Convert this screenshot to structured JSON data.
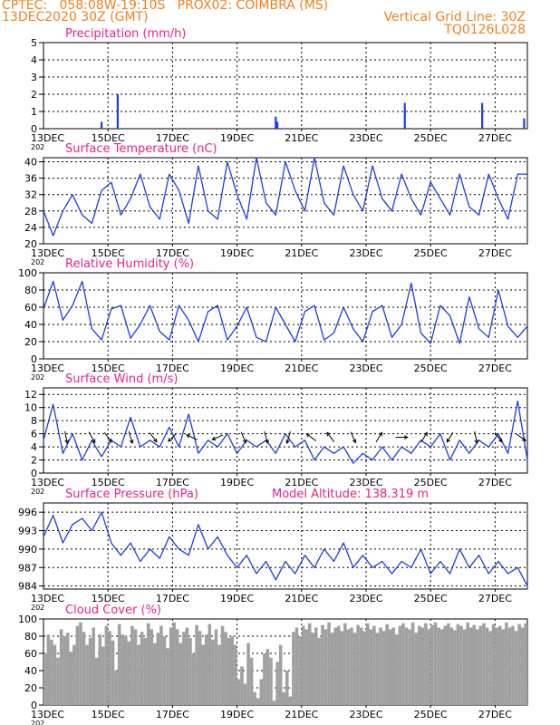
{
  "header": {
    "line1_left": "CPTEC:   058:08W-19:10S   PROX02: COIMBRA (MS)",
    "line2_left": "13DEC2020 30Z (GMT)",
    "line2_right": "Vertical Grid Line: 30Z",
    "line3_right": "TQ0126L028",
    "color": "#f08020"
  },
  "colors": {
    "series": "#1e3ce0",
    "title": "#e8208a",
    "arrow": "#000000",
    "cloud": "#a0a0a0",
    "grid": "#000000"
  },
  "x_axis": {
    "start_label": "13DEC",
    "start_year_partial": "202",
    "ticks": [
      {
        "day": 15,
        "label": "15DEC"
      },
      {
        "day": 17,
        "label": "17DEC"
      },
      {
        "day": 19,
        "label": "19DEC"
      },
      {
        "day": 21,
        "label": "21DEC"
      },
      {
        "day": 23,
        "label": "23DEC"
      },
      {
        "day": 25,
        "label": "25DEC"
      },
      {
        "day": 27,
        "label": "27DEC"
      }
    ],
    "range_days": [
      13.0,
      28.0
    ]
  },
  "chart_data": [
    {
      "type": "bar",
      "title": "Precipitation (mm/h)",
      "ylim": [
        0,
        5
      ],
      "yticks": [
        "0",
        "1",
        "2",
        "3",
        "4",
        "5"
      ],
      "x_days": [
        14.8,
        15.3,
        20.2,
        20.25,
        24.2,
        26.6,
        27.9
      ],
      "values": [
        0.4,
        2.0,
        0.7,
        0.4,
        1.5,
        1.5,
        0.6
      ]
    },
    {
      "type": "line",
      "title": "Surface Temperature (nC)",
      "ylim": [
        20,
        41
      ],
      "yticks": [
        "20",
        "24",
        "28",
        "32",
        "36",
        "40"
      ],
      "x_days": [
        13.0,
        13.3,
        13.6,
        13.9,
        14.2,
        14.5,
        14.8,
        15.1,
        15.4,
        15.7,
        16.0,
        16.3,
        16.6,
        16.9,
        17.2,
        17.5,
        17.8,
        18.1,
        18.4,
        18.7,
        19.0,
        19.3,
        19.6,
        19.9,
        20.2,
        20.5,
        20.8,
        21.1,
        21.4,
        21.7,
        22.0,
        22.3,
        22.6,
        22.9,
        23.2,
        23.5,
        23.8,
        24.1,
        24.4,
        24.7,
        25.0,
        25.3,
        25.6,
        25.9,
        26.2,
        26.5,
        26.8,
        27.1,
        27.4,
        27.7,
        28.0
      ],
      "values": [
        28,
        22,
        28,
        32,
        27,
        25,
        33,
        35,
        27,
        31,
        37,
        29,
        26,
        37,
        33,
        25,
        39,
        28,
        26,
        40,
        32,
        26,
        41,
        30,
        27,
        40,
        33,
        28,
        41,
        30,
        27,
        39,
        32,
        28,
        39,
        31,
        28,
        37,
        31,
        27,
        35,
        31,
        27,
        37,
        29,
        27,
        37,
        31,
        26,
        37,
        37
      ]
    },
    {
      "type": "line",
      "title": "Relative Humidity (%)",
      "ylim": [
        0,
        100
      ],
      "yticks": [
        "0",
        "20",
        "40",
        "60",
        "80",
        "100"
      ],
      "x_days": [
        13.0,
        13.3,
        13.6,
        13.9,
        14.2,
        14.5,
        14.8,
        15.1,
        15.4,
        15.7,
        16.0,
        16.3,
        16.6,
        16.9,
        17.2,
        17.5,
        17.8,
        18.1,
        18.4,
        18.7,
        19.0,
        19.3,
        19.6,
        19.9,
        20.2,
        20.5,
        20.8,
        21.1,
        21.4,
        21.7,
        22.0,
        22.3,
        22.6,
        22.9,
        23.2,
        23.5,
        23.8,
        24.1,
        24.4,
        24.7,
        25.0,
        25.3,
        25.6,
        25.9,
        26.2,
        26.5,
        26.8,
        27.1,
        27.4,
        27.7,
        28.0
      ],
      "values": [
        58,
        90,
        45,
        62,
        90,
        35,
        22,
        58,
        62,
        24,
        40,
        62,
        32,
        22,
        62,
        45,
        20,
        55,
        62,
        22,
        38,
        60,
        25,
        20,
        60,
        40,
        20,
        55,
        62,
        22,
        30,
        60,
        35,
        20,
        55,
        62,
        25,
        40,
        88,
        30,
        18,
        62,
        50,
        18,
        72,
        35,
        25,
        80,
        38,
        25,
        38
      ]
    },
    {
      "type": "line",
      "title": "Surface Wind (m/s)",
      "ylim": [
        0,
        13
      ],
      "yticks": [
        "0",
        "2",
        "4",
        "6",
        "8",
        "10",
        "12"
      ],
      "x_days": [
        13.0,
        13.3,
        13.6,
        13.9,
        14.2,
        14.5,
        14.8,
        15.1,
        15.4,
        15.7,
        16.0,
        16.3,
        16.6,
        16.9,
        17.2,
        17.5,
        17.8,
        18.1,
        18.4,
        18.7,
        19.0,
        19.3,
        19.6,
        19.9,
        20.2,
        20.5,
        20.8,
        21.1,
        21.4,
        21.7,
        22.0,
        22.3,
        22.6,
        22.9,
        23.2,
        23.5,
        23.8,
        24.1,
        24.4,
        24.7,
        25.0,
        25.3,
        25.6,
        25.9,
        26.2,
        26.5,
        26.8,
        27.1,
        27.4,
        27.7,
        28.0
      ],
      "values": [
        5,
        10.5,
        3,
        6,
        2,
        5,
        2.5,
        5,
        4,
        8.5,
        4,
        5,
        4,
        7,
        4,
        9,
        3,
        5,
        4,
        6,
        3,
        5,
        4,
        5,
        3,
        6,
        4,
        5,
        2,
        4,
        3,
        4,
        1.5,
        3,
        2,
        4,
        2,
        4,
        3,
        5,
        4,
        6,
        2,
        5,
        3,
        5,
        4,
        6,
        3,
        11,
        2
      ],
      "arrows": [
        {
          "day": 13.7,
          "dx": 0.2,
          "dy": 1
        },
        {
          "day": 14.5,
          "dx": 0.5,
          "dy": 0.9
        },
        {
          "day": 15.0,
          "dx": 0.6,
          "dy": 0.8
        },
        {
          "day": 15.7,
          "dx": 0.3,
          "dy": 1
        },
        {
          "day": 16.4,
          "dx": 0.6,
          "dy": 0.8
        },
        {
          "day": 17.0,
          "dx": -0.7,
          "dy": 0.7
        },
        {
          "day": 17.6,
          "dx": -0.9,
          "dy": -0.4
        },
        {
          "day": 18.4,
          "dx": -0.9,
          "dy": 0.4
        },
        {
          "day": 19.2,
          "dx": 0.4,
          "dy": 0.9
        },
        {
          "day": 19.9,
          "dx": 0.3,
          "dy": 1
        },
        {
          "day": 20.6,
          "dx": -0.3,
          "dy": 1
        },
        {
          "day": 21.3,
          "dx": -0.8,
          "dy": -0.6
        },
        {
          "day": 21.9,
          "dx": -0.6,
          "dy": -0.8
        },
        {
          "day": 22.6,
          "dx": 0.4,
          "dy": 0.9
        },
        {
          "day": 23.4,
          "dx": 0.5,
          "dy": -0.8
        },
        {
          "day": 24.1,
          "dx": 1,
          "dy": 0
        },
        {
          "day": 24.8,
          "dx": 0.5,
          "dy": -0.8
        },
        {
          "day": 25.6,
          "dx": -0.5,
          "dy": 0.8
        },
        {
          "day": 26.4,
          "dx": 0.2,
          "dy": 1
        },
        {
          "day": 27.1,
          "dx": 0.6,
          "dy": 0.8
        },
        {
          "day": 27.8,
          "dx": 0.8,
          "dy": 0.6
        }
      ]
    },
    {
      "type": "line",
      "title": "Surface Pressure (hPa)",
      "annotation": "Model Altitude: 138.319 m",
      "ylim": [
        983.5,
        997.5
      ],
      "yticks": [
        "984",
        "987",
        "990",
        "993",
        "996"
      ],
      "ytick_values": [
        984,
        987,
        990,
        993,
        996
      ],
      "x_days": [
        13.0,
        13.3,
        13.6,
        13.9,
        14.2,
        14.5,
        14.8,
        15.1,
        15.4,
        15.7,
        16.0,
        16.3,
        16.6,
        16.9,
        17.2,
        17.5,
        17.8,
        18.1,
        18.4,
        18.7,
        19.0,
        19.3,
        19.6,
        19.9,
        20.2,
        20.5,
        20.8,
        21.1,
        21.4,
        21.7,
        22.0,
        22.3,
        22.6,
        22.9,
        23.2,
        23.5,
        23.8,
        24.1,
        24.4,
        24.7,
        25.0,
        25.3,
        25.6,
        25.9,
        26.2,
        26.5,
        26.8,
        27.1,
        27.4,
        27.7,
        28.0
      ],
      "values": [
        992,
        995.5,
        991,
        994,
        995,
        993,
        996,
        991,
        989,
        991,
        988,
        990,
        988.5,
        992,
        990,
        989,
        994,
        990,
        992,
        989,
        987,
        989,
        986,
        988,
        985,
        988,
        986,
        989,
        987,
        990,
        988,
        991,
        987,
        989,
        987,
        988,
        986,
        988,
        987,
        990,
        986,
        988,
        986,
        990,
        987,
        989,
        986,
        988,
        986,
        987,
        984
      ]
    },
    {
      "type": "bar",
      "title": "Cloud Cover (%)",
      "ylim": [
        0,
        100
      ],
      "yticks": [
        "0",
        "20",
        "40",
        "60",
        "80",
        "100"
      ],
      "x_days": [
        13.0,
        13.1,
        13.2,
        13.3,
        13.4,
        13.5,
        13.6,
        13.7,
        13.8,
        13.9,
        14.0,
        14.1,
        14.2,
        14.3,
        14.4,
        14.5,
        14.6,
        14.7,
        14.8,
        14.9,
        15.0,
        15.1,
        15.2,
        15.3,
        15.4,
        15.5,
        15.6,
        15.7,
        15.8,
        15.9,
        16.0,
        16.1,
        16.2,
        16.3,
        16.4,
        16.5,
        16.6,
        16.7,
        16.8,
        16.9,
        17.0,
        17.1,
        17.2,
        17.3,
        17.4,
        17.5,
        17.6,
        17.7,
        17.8,
        17.9,
        18.0,
        18.1,
        18.2,
        18.3,
        18.4,
        18.5,
        18.6,
        18.7,
        18.8,
        18.9,
        19.0,
        19.1,
        19.2,
        19.3,
        19.4,
        19.5,
        19.6,
        19.7,
        19.8,
        19.9,
        20.0,
        20.1,
        20.2,
        20.3,
        20.4,
        20.5,
        20.6,
        20.7,
        20.8,
        20.9,
        21.0,
        21.1,
        21.2,
        21.3,
        21.4,
        21.5,
        21.6,
        21.7,
        21.8,
        21.9,
        22.0,
        22.1,
        22.2,
        22.3,
        22.4,
        22.5,
        22.6,
        22.7,
        22.8,
        22.9,
        23.0,
        23.1,
        23.2,
        23.3,
        23.4,
        23.5,
        23.6,
        23.7,
        23.8,
        23.9,
        24.0,
        24.1,
        24.2,
        24.3,
        24.4,
        24.5,
        24.6,
        24.7,
        24.8,
        24.9,
        25.0,
        25.1,
        25.2,
        25.3,
        25.4,
        25.5,
        25.6,
        25.7,
        25.8,
        25.9,
        26.0,
        26.1,
        26.2,
        26.3,
        26.4,
        26.5,
        26.6,
        26.7,
        26.8,
        26.9,
        27.0,
        27.1,
        27.2,
        27.3,
        27.4,
        27.5,
        27.6,
        27.7,
        27.8,
        27.9
      ],
      "values": [
        60,
        82,
        76,
        70,
        55,
        88,
        80,
        84,
        62,
        70,
        92,
        96,
        85,
        70,
        78,
        90,
        55,
        82,
        68,
        92,
        86,
        75,
        40,
        94,
        82,
        80,
        74,
        92,
        88,
        70,
        85,
        78,
        95,
        88,
        72,
        84,
        92,
        80,
        66,
        90,
        96,
        88,
        72,
        85,
        90,
        78,
        60,
        93,
        86,
        70,
        82,
        94,
        76,
        88,
        70,
        92,
        85,
        78,
        80,
        70,
        30,
        45,
        25,
        72,
        55,
        15,
        8,
        30,
        60,
        65,
        55,
        5,
        50,
        70,
        15,
        40,
        10,
        85,
        90,
        80,
        92,
        88,
        95,
        84,
        90,
        78,
        93,
        88,
        96,
        84,
        90,
        92,
        86,
        95,
        88,
        90,
        84,
        93,
        90,
        86,
        95,
        88,
        92,
        84,
        90,
        86,
        94,
        88,
        90,
        82,
        92,
        95,
        90,
        88,
        96,
        84,
        92,
        90,
        95,
        88,
        93,
        96,
        90,
        88,
        92,
        95,
        90,
        87,
        94,
        92,
        88,
        96,
        90,
        93,
        88,
        92,
        95,
        90,
        86,
        94,
        90,
        92,
        88,
        96,
        90,
        92,
        86,
        94,
        90,
        95
      ]
    }
  ]
}
